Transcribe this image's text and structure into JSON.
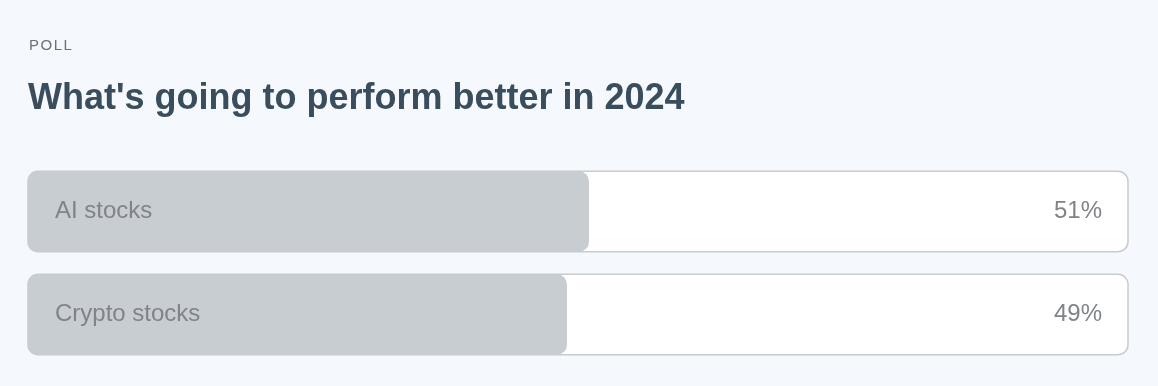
{
  "chart_data": {
    "type": "bar",
    "orientation": "horizontal",
    "subtitle": "POLL",
    "title": "What's going to perform better in 2024",
    "categories": [
      "AI stocks",
      "Crypto stocks"
    ],
    "values": [
      51,
      49
    ],
    "color": "#c8cdd1",
    "value_labels": [
      "51%",
      "49%"
    ],
    "xlim": [
      0,
      100
    ],
    "tick_labels": false
  }
}
